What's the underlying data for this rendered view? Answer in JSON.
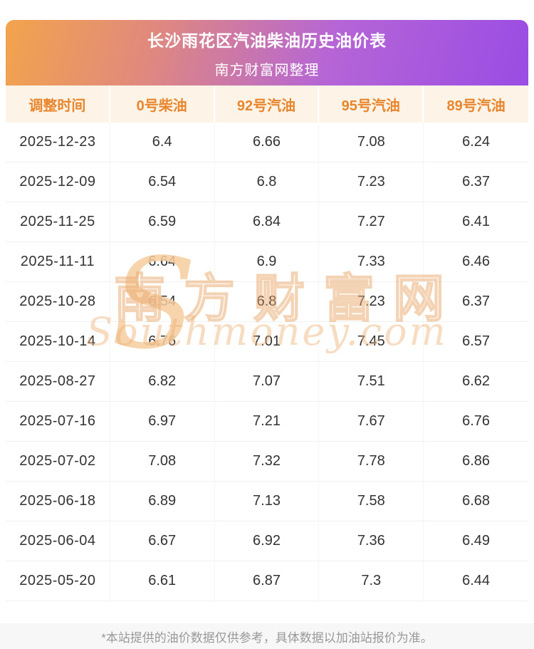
{
  "header": {
    "title": "长沙雨花区汽油柴油历史油价表",
    "subtitle": "南方财富网整理"
  },
  "table": {
    "columns": [
      "调整时间",
      "0号柴油",
      "92号汽油",
      "95号汽油",
      "89号汽油"
    ],
    "rows": [
      [
        "2025-12-23",
        "6.4",
        "6.66",
        "7.08",
        "6.24"
      ],
      [
        "2025-12-09",
        "6.54",
        "6.8",
        "7.23",
        "6.37"
      ],
      [
        "2025-11-25",
        "6.59",
        "6.84",
        "7.27",
        "6.41"
      ],
      [
        "2025-11-11",
        "6.64",
        "6.9",
        "7.33",
        "6.46"
      ],
      [
        "2025-10-28",
        "6.54",
        "6.8",
        "7.23",
        "6.37"
      ],
      [
        "2025-10-14",
        "6.76",
        "7.01",
        "7.45",
        "6.57"
      ],
      [
        "2025-08-27",
        "6.82",
        "7.07",
        "7.51",
        "6.62"
      ],
      [
        "2025-07-16",
        "6.97",
        "7.21",
        "7.67",
        "6.76"
      ],
      [
        "2025-07-02",
        "7.08",
        "7.32",
        "7.78",
        "6.86"
      ],
      [
        "2025-06-18",
        "6.89",
        "7.13",
        "7.58",
        "6.68"
      ],
      [
        "2025-06-04",
        "6.67",
        "6.92",
        "7.36",
        "6.49"
      ],
      [
        "2025-05-20",
        "6.61",
        "6.87",
        "7.3",
        "6.44"
      ]
    ]
  },
  "watermark": {
    "s_glyph": "S",
    "cjk": "南方财富网",
    "latin": "Southmoney.com"
  },
  "footer": {
    "note": "*本站提供的油价数据仅供参考，具体数据以加油站报价为准。"
  },
  "colors": {
    "gradient_start": "#f3a44c",
    "gradient_end": "#9a4ce4",
    "banner_text": "#ffffff",
    "column_header_bg": "#fdf3e6",
    "column_header_text": "#e8862d",
    "cell_text": "#333333",
    "row_divider": "#f1f1f1",
    "footer_bg": "#f7f7f7",
    "footer_text": "#999999",
    "watermark": "#eeb276"
  }
}
